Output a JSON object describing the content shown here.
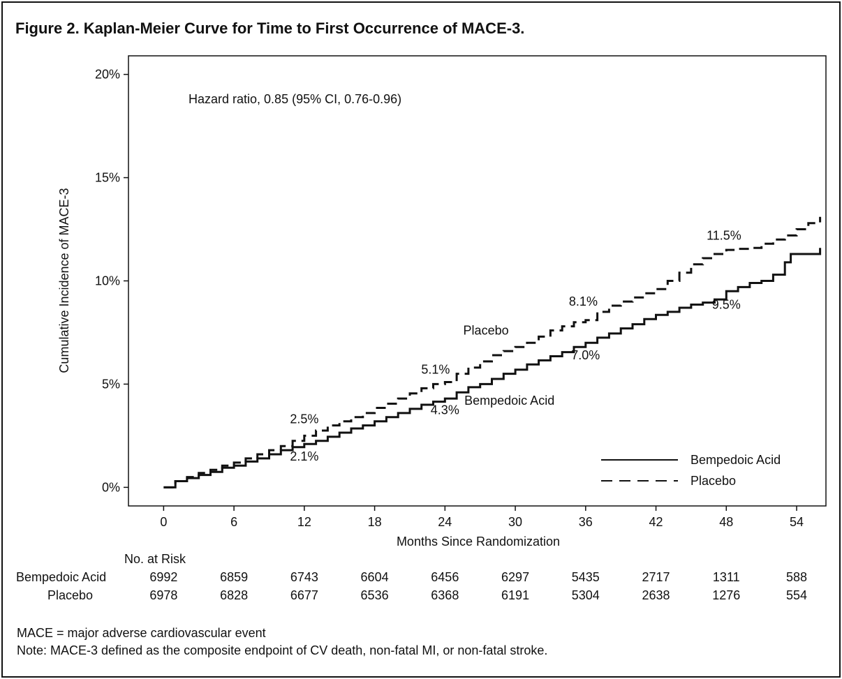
{
  "title": "Figure 2. Kaplan-Meier Curve for Time to First Occurrence of MACE-3.",
  "chart_data": {
    "type": "line",
    "xlabel": "Months Since Randomization",
    "ylabel": "Cumulative Incidence of MACE-3",
    "xlim": [
      -3,
      56.5
    ],
    "ylim": [
      -0.9,
      20.9
    ],
    "x_ticks": [
      0,
      6,
      12,
      18,
      24,
      30,
      36,
      42,
      48,
      54
    ],
    "x_tick_labels": [
      "0",
      "6",
      "12",
      "18",
      "24",
      "30",
      "36",
      "42",
      "48",
      "54"
    ],
    "y_ticks": [
      0,
      5,
      10,
      15,
      20
    ],
    "y_tick_labels": [
      "0%",
      "5%",
      "10%",
      "15%",
      "20%"
    ],
    "grid": false,
    "annotation": "Hazard ratio, 0.85 (95% CI, 0.76-0.96)",
    "legend_position": "bottom-right",
    "series": [
      {
        "name": "Bempedoic Acid",
        "style": "solid",
        "color": "#111111",
        "x": [
          0,
          1,
          2,
          3,
          4,
          5,
          6,
          7,
          8,
          9,
          10,
          11,
          12,
          13,
          14,
          15,
          16,
          17,
          18,
          19,
          20,
          21,
          22,
          23,
          24,
          25,
          26,
          27,
          28,
          29,
          30,
          31,
          32,
          33,
          34,
          35,
          36,
          37,
          38,
          39,
          40,
          41,
          42,
          43,
          44,
          45,
          46,
          47,
          48,
          49,
          50,
          51,
          52,
          53,
          53.5,
          54,
          55,
          56
        ],
        "y": [
          0,
          0.3,
          0.45,
          0.6,
          0.75,
          0.95,
          1.05,
          1.25,
          1.4,
          1.6,
          1.8,
          1.95,
          2.1,
          2.25,
          2.45,
          2.65,
          2.85,
          3.0,
          3.2,
          3.4,
          3.6,
          3.8,
          4.0,
          4.15,
          4.3,
          4.6,
          4.85,
          5.0,
          5.25,
          5.5,
          5.7,
          5.95,
          6.15,
          6.35,
          6.55,
          6.8,
          7.0,
          7.25,
          7.45,
          7.7,
          7.9,
          8.15,
          8.35,
          8.5,
          8.7,
          8.85,
          8.95,
          9.1,
          9.5,
          9.7,
          9.9,
          10.0,
          10.3,
          10.9,
          11.3,
          11.3,
          11.3,
          11.6
        ]
      },
      {
        "name": "Placebo",
        "style": "dashed",
        "color": "#111111",
        "x": [
          0,
          1,
          2,
          3,
          4,
          5,
          6,
          7,
          8,
          9,
          10,
          11,
          12,
          13,
          14,
          15,
          16,
          17,
          18,
          19,
          20,
          21,
          22,
          23,
          24,
          25,
          26,
          27,
          28,
          29,
          30,
          31,
          32,
          33,
          34,
          35,
          36,
          37,
          38,
          39,
          40,
          41,
          42,
          43,
          44,
          45,
          46,
          47,
          48,
          49,
          50,
          51,
          52,
          53,
          54,
          55,
          56
        ],
        "y": [
          0,
          0.3,
          0.5,
          0.7,
          0.85,
          1.05,
          1.2,
          1.4,
          1.6,
          1.8,
          2.0,
          2.25,
          2.5,
          2.75,
          3.0,
          3.2,
          3.4,
          3.6,
          3.85,
          4.05,
          4.3,
          4.55,
          4.8,
          5.0,
          5.1,
          5.5,
          5.8,
          6.1,
          6.4,
          6.6,
          6.8,
          7.0,
          7.3,
          7.6,
          7.8,
          8.0,
          8.1,
          8.5,
          8.8,
          9.0,
          9.2,
          9.4,
          9.6,
          10.0,
          10.4,
          10.8,
          11.1,
          11.3,
          11.5,
          11.55,
          11.6,
          11.8,
          12.0,
          12.2,
          12.5,
          12.8,
          13.1
        ]
      }
    ],
    "point_labels": [
      {
        "text": "2.5%",
        "x": 12,
        "y": 3.1
      },
      {
        "text": "2.1%",
        "x": 12,
        "y": 1.3
      },
      {
        "text": "5.1%",
        "x": 23.2,
        "y": 5.5
      },
      {
        "text": "4.3%",
        "x": 24,
        "y": 3.55
      },
      {
        "text": "8.1%",
        "x": 35.8,
        "y": 8.8
      },
      {
        "text": "7.0%",
        "x": 36,
        "y": 6.2
      },
      {
        "text": "11.5%",
        "x": 47.8,
        "y": 12.0
      },
      {
        "text": "9.5%",
        "x": 48,
        "y": 8.65
      }
    ],
    "series_labels": [
      {
        "text": "Placebo",
        "x": 27.5,
        "y": 7.4
      },
      {
        "text": "Bempedoic Acid",
        "x": 29.5,
        "y": 4.0
      }
    ]
  },
  "risk_table": {
    "header": "No. at Risk",
    "rows": [
      {
        "label": "Bempedoic Acid",
        "values": [
          "6992",
          "6859",
          "6743",
          "6604",
          "6456",
          "6297",
          "5435",
          "2717",
          "1311",
          "588"
        ]
      },
      {
        "label": "Placebo",
        "values": [
          "6978",
          "6828",
          "6677",
          "6536",
          "6368",
          "6191",
          "5304",
          "2638",
          "1276",
          "554"
        ]
      }
    ]
  },
  "footnotes": {
    "abbreviation": "MACE = major adverse cardiovascular event",
    "note": "Note: MACE-3 defined as the composite endpoint of CV death, non-fatal MI, or non-fatal stroke."
  }
}
